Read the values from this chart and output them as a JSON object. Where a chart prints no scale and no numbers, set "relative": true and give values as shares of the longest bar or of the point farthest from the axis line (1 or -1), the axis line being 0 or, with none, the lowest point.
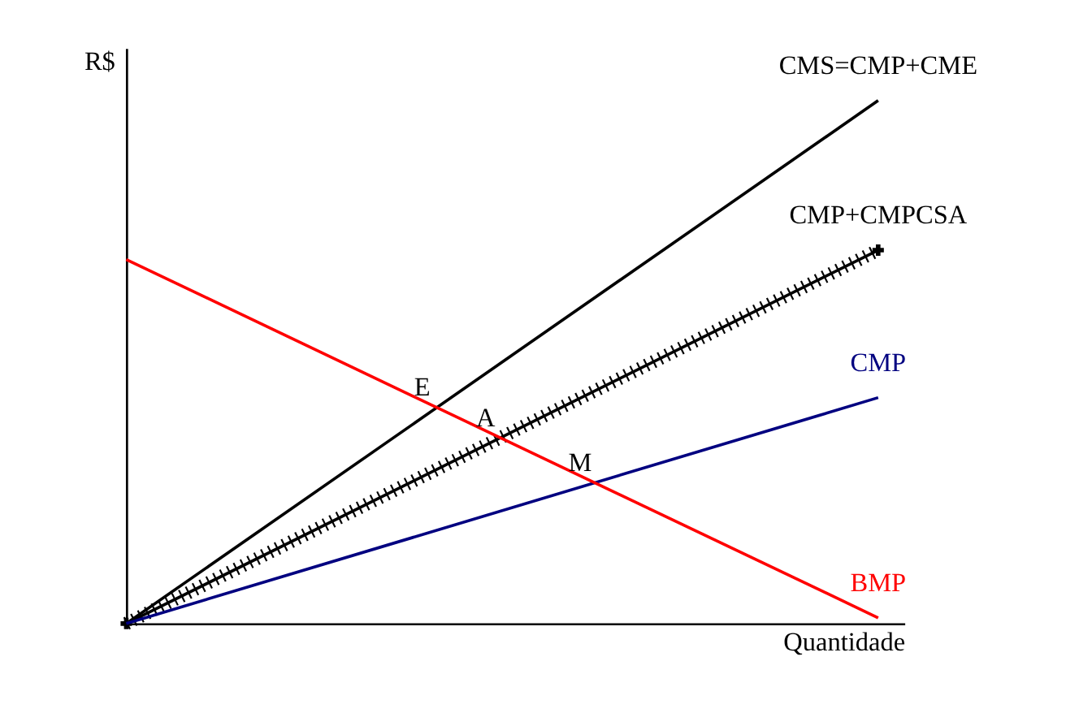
{
  "chart_data": {
    "type": "line",
    "relative": true,
    "xlabel": "Quantidade",
    "ylabel": "R$",
    "categories": [
      null,
      null
    ],
    "series": [
      {
        "name": "CMS=CMP+CME",
        "color": "#000000",
        "values": [
          0,
          1
        ]
      },
      {
        "name": "CMP+CMPCSA",
        "color": "#000000",
        "values": [
          0,
          0.714
        ],
        "marker": "cross"
      },
      {
        "name": "CMP",
        "color": "#000080",
        "values": [
          0,
          0.432
        ]
      },
      {
        "name": "BMP",
        "color": "#ff0000",
        "values": [
          0.696,
          0.011
        ]
      }
    ],
    "annotations": [
      "E",
      "A",
      "M"
    ]
  }
}
